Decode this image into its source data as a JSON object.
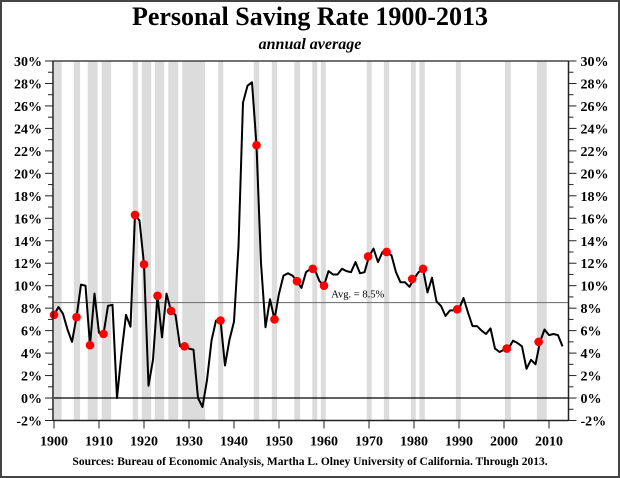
{
  "chart_data": {
    "type": "line",
    "title": "Personal Saving Rate 1900-2013",
    "subtitle": "annual average",
    "source": "Sources: Bureau of Economic Analysis, Martha L. Olney University of California. Through 2013.",
    "xlabel": "",
    "ylabel": "",
    "xlim": [
      1900,
      2015
    ],
    "ylim": [
      -2,
      30
    ],
    "x_ticks": [
      1900,
      1910,
      1920,
      1930,
      1940,
      1950,
      1960,
      1970,
      1980,
      1990,
      2000,
      2010
    ],
    "x_tick_labels": [
      "1900",
      "1910",
      "1920",
      "1930",
      "1940",
      "1950",
      "1960",
      "1970",
      "1980",
      "1990",
      "2000",
      "2010"
    ],
    "y_ticks": [
      -2,
      0,
      2,
      4,
      6,
      8,
      10,
      12,
      14,
      16,
      18,
      20,
      22,
      24,
      26,
      28,
      30
    ],
    "y_tick_labels": [
      "-2%",
      "0%",
      "2%",
      "4%",
      "6%",
      "8%",
      "10%",
      "12%",
      "14%",
      "16%",
      "18%",
      "20%",
      "22%",
      "24%",
      "26%",
      "28%",
      "30%"
    ],
    "y_axis_sides": [
      "left",
      "right"
    ],
    "grid": false,
    "reference_line": {
      "value": 8.5,
      "label": "Avg. = 8.5%"
    },
    "zero_line": 0,
    "series": [
      {
        "name": "Personal Saving Rate",
        "color": "#000000",
        "points": [
          [
            1900,
            7.4
          ],
          [
            1901,
            8.1
          ],
          [
            1902,
            7.5
          ],
          [
            1903,
            6.1
          ],
          [
            1904,
            5.0
          ],
          [
            1905,
            7.2
          ],
          [
            1906,
            10.1
          ],
          [
            1907,
            10.0
          ],
          [
            1908,
            4.7
          ],
          [
            1909,
            9.3
          ],
          [
            1910,
            5.8
          ],
          [
            1911,
            5.7
          ],
          [
            1912,
            8.2
          ],
          [
            1913,
            8.3
          ],
          [
            1914,
            0.0
          ],
          [
            1915,
            4.0
          ],
          [
            1916,
            7.4
          ],
          [
            1917,
            6.35
          ],
          [
            1918,
            16.3
          ],
          [
            1919,
            15.8
          ],
          [
            1920,
            11.9
          ],
          [
            1921,
            1.1
          ],
          [
            1922,
            3.4
          ],
          [
            1923,
            9.1
          ],
          [
            1924,
            5.4
          ],
          [
            1925,
            9.3
          ],
          [
            1926,
            7.75
          ],
          [
            1927,
            7.4
          ],
          [
            1928,
            4.6
          ],
          [
            1929,
            4.6
          ],
          [
            1930,
            4.4
          ],
          [
            1931,
            4.3
          ],
          [
            1932,
            0.0
          ],
          [
            1933,
            -0.8
          ],
          [
            1934,
            1.6
          ],
          [
            1935,
            5.1
          ],
          [
            1936,
            6.9
          ],
          [
            1937,
            6.9
          ],
          [
            1938,
            2.9
          ],
          [
            1939,
            5.2
          ],
          [
            1940,
            6.8
          ],
          [
            1941,
            13.5
          ],
          [
            1942,
            26.3
          ],
          [
            1943,
            27.8
          ],
          [
            1944,
            28.1
          ],
          [
            1945,
            22.5
          ],
          [
            1946,
            12.0
          ],
          [
            1947,
            6.3
          ],
          [
            1948,
            8.8
          ],
          [
            1949,
            7.0
          ],
          [
            1950,
            9.3
          ],
          [
            1951,
            10.9
          ],
          [
            1952,
            11.1
          ],
          [
            1953,
            10.9
          ],
          [
            1954,
            10.4
          ],
          [
            1955,
            9.8
          ],
          [
            1956,
            11.2
          ],
          [
            1957,
            11.5
          ],
          [
            1958,
            11.4
          ],
          [
            1959,
            10.4
          ],
          [
            1960,
            10.0
          ],
          [
            1961,
            11.3
          ],
          [
            1962,
            11.0
          ],
          [
            1963,
            11.0
          ],
          [
            1964,
            11.5
          ],
          [
            1965,
            11.3
          ],
          [
            1966,
            11.2
          ],
          [
            1967,
            12.1
          ],
          [
            1968,
            11.1
          ],
          [
            1969,
            11.2
          ],
          [
            1970,
            12.6
          ],
          [
            1971,
            13.3
          ],
          [
            1972,
            12.1
          ],
          [
            1973,
            13.0
          ],
          [
            1974,
            13.0
          ],
          [
            1975,
            12.7
          ],
          [
            1976,
            11.2
          ],
          [
            1977,
            10.3
          ],
          [
            1978,
            10.3
          ],
          [
            1979,
            9.9
          ],
          [
            1980,
            10.6
          ],
          [
            1981,
            11.2
          ],
          [
            1982,
            11.5
          ],
          [
            1983,
            9.4
          ],
          [
            1984,
            10.7
          ],
          [
            1985,
            8.6
          ],
          [
            1986,
            8.2
          ],
          [
            1987,
            7.3
          ],
          [
            1988,
            7.8
          ],
          [
            1989,
            7.8
          ],
          [
            1990,
            7.9
          ],
          [
            1991,
            8.9
          ],
          [
            1992,
            7.6
          ],
          [
            1993,
            6.4
          ],
          [
            1994,
            6.4
          ],
          [
            1995,
            6.0
          ],
          [
            1996,
            5.7
          ],
          [
            1997,
            6.2
          ],
          [
            1998,
            4.4
          ],
          [
            1999,
            4.1
          ],
          [
            2000,
            4.3
          ],
          [
            2001,
            4.4
          ],
          [
            2002,
            5.1
          ],
          [
            2003,
            4.9
          ],
          [
            2004,
            4.6
          ],
          [
            2005,
            2.6
          ],
          [
            2006,
            3.4
          ],
          [
            2007,
            3.0
          ],
          [
            2008,
            5.0
          ],
          [
            2009,
            6.1
          ],
          [
            2010,
            5.6
          ],
          [
            2011,
            5.7
          ],
          [
            2012,
            5.6
          ],
          [
            2013,
            4.6
          ]
        ]
      }
    ],
    "markers": {
      "name": "Recession start",
      "color": "#ff0000",
      "points": [
        [
          1900,
          7.4
        ],
        [
          1905,
          7.2
        ],
        [
          1908,
          4.7
        ],
        [
          1911,
          5.7
        ],
        [
          1918,
          16.3
        ],
        [
          1920,
          11.9
        ],
        [
          1923,
          9.1
        ],
        [
          1926,
          7.75
        ],
        [
          1929,
          4.6
        ],
        [
          1937,
          6.9
        ],
        [
          1945,
          22.5
        ],
        [
          1949,
          7.0
        ],
        [
          1954,
          10.4
        ],
        [
          1957.5,
          11.5
        ],
        [
          1960,
          10.0
        ],
        [
          1969.8,
          12.6
        ],
        [
          1973.9,
          13.0
        ],
        [
          1979.6,
          10.6
        ],
        [
          1982,
          11.5
        ],
        [
          1989.6,
          7.9
        ],
        [
          2000.6,
          4.4
        ],
        [
          2007.7,
          5.0
        ]
      ]
    },
    "shaded_periods": {
      "name": "Recessions",
      "color": "#dcdcdc",
      "ranges": [
        [
          1900,
          1901.7
        ],
        [
          1904.4,
          1905.8
        ],
        [
          1907.5,
          1909.7
        ],
        [
          1910.6,
          1912.7
        ],
        [
          1917.5,
          1918.7
        ],
        [
          1919.5,
          1921.6
        ],
        [
          1922.4,
          1924.5
        ],
        [
          1925.4,
          1927.6
        ],
        [
          1928.5,
          1933.6
        ],
        [
          1936.5,
          1937.6
        ],
        [
          1944.4,
          1945.6
        ],
        [
          1948.4,
          1949.6
        ],
        [
          1953.4,
          1954.7
        ],
        [
          1957.4,
          1958.5
        ],
        [
          1959.3,
          1960.4
        ],
        [
          1969.5,
          1970.6
        ],
        [
          1973.3,
          1974.5
        ],
        [
          1979.3,
          1980.4
        ],
        [
          1981.2,
          1982.4
        ],
        [
          1989.3,
          1990.4
        ],
        [
          2000.2,
          2001.5
        ],
        [
          2007.3,
          2009.5
        ]
      ]
    }
  }
}
